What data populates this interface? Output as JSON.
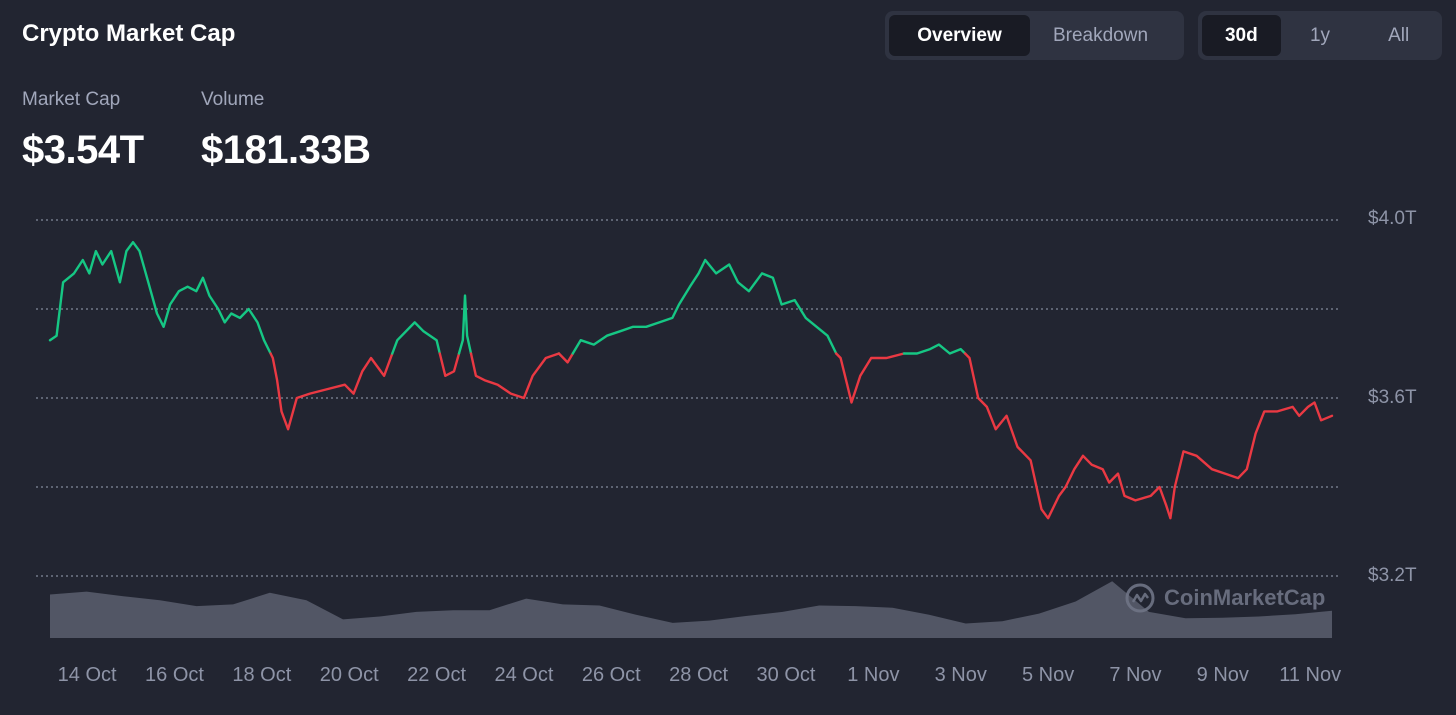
{
  "header": {
    "title": "Crypto Market Cap"
  },
  "view_toggle": [
    {
      "label": "Overview",
      "active": true
    },
    {
      "label": "Breakdown",
      "active": false
    }
  ],
  "range_toggle": [
    {
      "label": "30d",
      "active": true
    },
    {
      "label": "1y",
      "active": false
    },
    {
      "label": "All",
      "active": false
    }
  ],
  "stats": {
    "market_cap": {
      "label": "Market Cap",
      "value": "$3.54T"
    },
    "volume": {
      "label": "Volume",
      "value": "$181.33B"
    }
  },
  "watermark": "CoinMarketCap",
  "colors": {
    "background": "#222531",
    "up": "#16c784",
    "down": "#ea3943",
    "volume": "#5b5f6f",
    "grid": "#8e94a7"
  },
  "chart_data": {
    "type": "line",
    "baseline": 3.7,
    "y_unit": "trillion USD",
    "ylim": [
      3.2,
      4.0
    ],
    "y_ticks": [
      {
        "value": 4.0,
        "label": "$4.0T"
      },
      {
        "value": 3.6,
        "label": "$3.6T"
      },
      {
        "value": 3.2,
        "label": "$3.2T"
      }
    ],
    "grid": true,
    "x_ticks": [
      "14 Oct",
      "16 Oct",
      "18 Oct",
      "20 Oct",
      "22 Oct",
      "24 Oct",
      "26 Oct",
      "28 Oct",
      "30 Oct",
      "1 Nov",
      "3 Nov",
      "5 Nov",
      "7 Nov",
      "9 Nov",
      "11 Nov"
    ],
    "x_tick_days": [
      1,
      3,
      5,
      7,
      9,
      11,
      13,
      15,
      17,
      19,
      21,
      23,
      25,
      27,
      29
    ],
    "x_range_days": [
      0.15,
      29.5
    ],
    "series": [
      {
        "values": [
          [
            0.15,
            3.73
          ],
          [
            0.3,
            3.74
          ],
          [
            0.45,
            3.86
          ],
          [
            0.7,
            3.88
          ],
          [
            0.9,
            3.91
          ],
          [
            1.05,
            3.88
          ],
          [
            1.2,
            3.93
          ],
          [
            1.35,
            3.9
          ],
          [
            1.55,
            3.93
          ],
          [
            1.75,
            3.86
          ],
          [
            1.9,
            3.93
          ],
          [
            2.05,
            3.95
          ],
          [
            2.2,
            3.93
          ],
          [
            2.4,
            3.86
          ],
          [
            2.6,
            3.79
          ],
          [
            2.75,
            3.76
          ],
          [
            2.9,
            3.81
          ],
          [
            3.1,
            3.84
          ],
          [
            3.3,
            3.85
          ],
          [
            3.5,
            3.84
          ],
          [
            3.65,
            3.87
          ],
          [
            3.8,
            3.83
          ],
          [
            4.0,
            3.8
          ],
          [
            4.15,
            3.77
          ],
          [
            4.3,
            3.79
          ],
          [
            4.5,
            3.78
          ],
          [
            4.7,
            3.8
          ],
          [
            4.9,
            3.77
          ],
          [
            5.05,
            3.73
          ],
          [
            5.25,
            3.69
          ],
          [
            5.35,
            3.64
          ],
          [
            5.45,
            3.57
          ],
          [
            5.6,
            3.53
          ],
          [
            5.8,
            3.6
          ],
          [
            6.1,
            3.61
          ],
          [
            6.5,
            3.62
          ],
          [
            6.9,
            3.63
          ],
          [
            7.1,
            3.61
          ],
          [
            7.3,
            3.66
          ],
          [
            7.5,
            3.69
          ],
          [
            7.8,
            3.65
          ],
          [
            8.1,
            3.73
          ],
          [
            8.5,
            3.77
          ],
          [
            8.7,
            3.75
          ],
          [
            9.0,
            3.73
          ],
          [
            9.2,
            3.65
          ],
          [
            9.4,
            3.66
          ],
          [
            9.6,
            3.73
          ],
          [
            9.65,
            3.83
          ],
          [
            9.7,
            3.74
          ],
          [
            9.9,
            3.65
          ],
          [
            10.1,
            3.64
          ],
          [
            10.4,
            3.63
          ],
          [
            10.7,
            3.61
          ],
          [
            11.0,
            3.6
          ],
          [
            11.2,
            3.65
          ],
          [
            11.5,
            3.69
          ],
          [
            11.8,
            3.7
          ],
          [
            12.0,
            3.68
          ],
          [
            12.3,
            3.73
          ],
          [
            12.6,
            3.72
          ],
          [
            12.9,
            3.74
          ],
          [
            13.2,
            3.75
          ],
          [
            13.5,
            3.76
          ],
          [
            13.8,
            3.76
          ],
          [
            14.1,
            3.77
          ],
          [
            14.4,
            3.78
          ],
          [
            14.55,
            3.81
          ],
          [
            14.8,
            3.85
          ],
          [
            15.0,
            3.88
          ],
          [
            15.15,
            3.91
          ],
          [
            15.4,
            3.88
          ],
          [
            15.7,
            3.9
          ],
          [
            15.9,
            3.86
          ],
          [
            16.15,
            3.84
          ],
          [
            16.45,
            3.88
          ],
          [
            16.7,
            3.87
          ],
          [
            16.9,
            3.81
          ],
          [
            17.2,
            3.82
          ],
          [
            17.45,
            3.78
          ],
          [
            17.7,
            3.76
          ],
          [
            17.95,
            3.74
          ],
          [
            18.15,
            3.7
          ],
          [
            18.25,
            3.69
          ],
          [
            18.4,
            3.63
          ],
          [
            18.5,
            3.59
          ],
          [
            18.7,
            3.65
          ],
          [
            18.95,
            3.69
          ],
          [
            19.3,
            3.69
          ],
          [
            19.7,
            3.7
          ],
          [
            20.0,
            3.7
          ],
          [
            20.3,
            3.71
          ],
          [
            20.5,
            3.72
          ],
          [
            20.75,
            3.7
          ],
          [
            21.0,
            3.71
          ],
          [
            21.2,
            3.69
          ],
          [
            21.4,
            3.6
          ],
          [
            21.6,
            3.58
          ],
          [
            21.8,
            3.53
          ],
          [
            22.05,
            3.56
          ],
          [
            22.3,
            3.49
          ],
          [
            22.6,
            3.46
          ],
          [
            22.85,
            3.35
          ],
          [
            23.0,
            3.33
          ],
          [
            23.25,
            3.38
          ],
          [
            23.4,
            3.4
          ],
          [
            23.6,
            3.44
          ],
          [
            23.8,
            3.47
          ],
          [
            24.0,
            3.45
          ],
          [
            24.25,
            3.44
          ],
          [
            24.4,
            3.41
          ],
          [
            24.6,
            3.43
          ],
          [
            24.75,
            3.38
          ],
          [
            25.0,
            3.37
          ],
          [
            25.35,
            3.38
          ],
          [
            25.55,
            3.4
          ],
          [
            25.7,
            3.36
          ],
          [
            25.8,
            3.33
          ],
          [
            25.9,
            3.4
          ],
          [
            26.1,
            3.48
          ],
          [
            26.4,
            3.47
          ],
          [
            26.75,
            3.44
          ],
          [
            27.05,
            3.43
          ],
          [
            27.35,
            3.42
          ],
          [
            27.55,
            3.44
          ],
          [
            27.75,
            3.52
          ],
          [
            27.95,
            3.57
          ],
          [
            28.25,
            3.57
          ],
          [
            28.6,
            3.58
          ],
          [
            28.75,
            3.56
          ],
          [
            28.95,
            3.58
          ],
          [
            29.1,
            3.59
          ],
          [
            29.25,
            3.55
          ],
          [
            29.5,
            3.56
          ]
        ]
      }
    ],
    "volume_series": [
      0.75,
      0.8,
      0.72,
      0.65,
      0.55,
      0.58,
      0.78,
      0.65,
      0.32,
      0.37,
      0.45,
      0.48,
      0.48,
      0.68,
      0.58,
      0.56,
      0.4,
      0.26,
      0.3,
      0.38,
      0.45,
      0.56,
      0.55,
      0.52,
      0.4,
      0.25,
      0.29,
      0.42,
      0.63,
      0.98,
      0.45,
      0.34,
      0.35,
      0.37,
      0.41,
      0.47
    ]
  }
}
